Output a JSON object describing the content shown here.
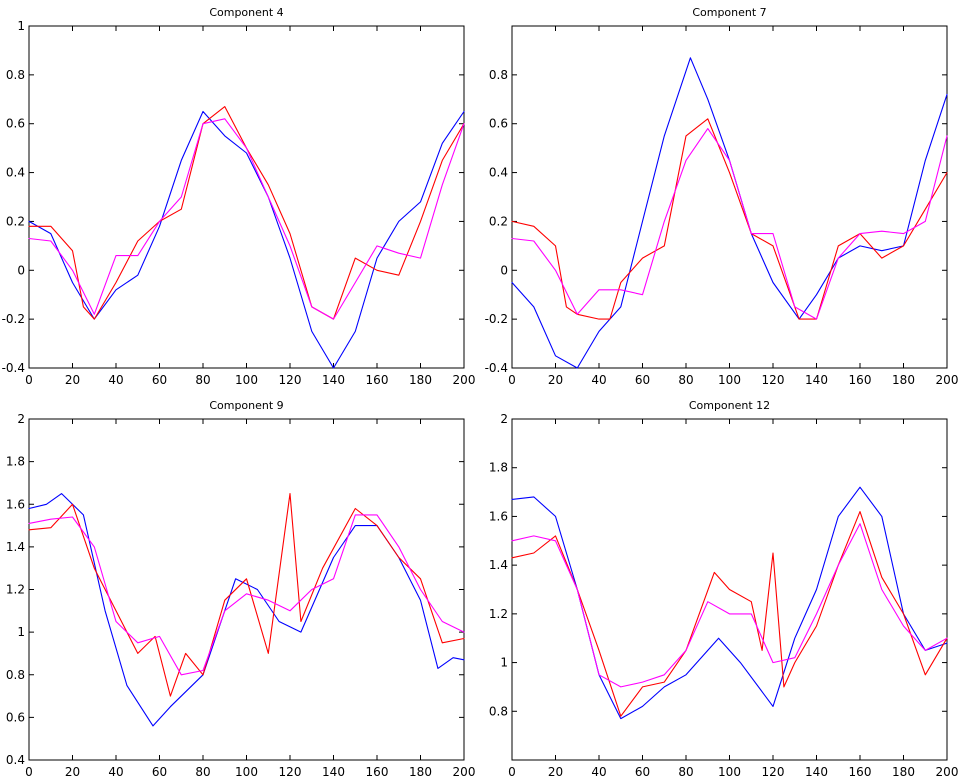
{
  "chart_data": [
    {
      "type": "line",
      "title": "Component 4",
      "xlabel": "",
      "ylabel": "",
      "xlim": [
        0,
        200
      ],
      "ylim": [
        -0.4,
        1
      ],
      "xticks": [
        "0",
        "20",
        "40",
        "60",
        "80",
        "100",
        "120",
        "140",
        "160",
        "180",
        "200"
      ],
      "yticks": [
        "-0.4",
        "-0.2",
        "0",
        "0.2",
        "0.4",
        "0.6",
        "0.8",
        "1"
      ],
      "grid": false,
      "series": [
        {
          "name": "blue",
          "color": "#0000ff",
          "x": [
            0,
            10,
            20,
            30,
            40,
            50,
            60,
            70,
            80,
            90,
            100,
            110,
            120,
            130,
            140,
            150,
            160,
            170,
            180,
            190,
            200
          ],
          "y": [
            0.2,
            0.15,
            -0.05,
            -0.2,
            -0.08,
            -0.02,
            0.18,
            0.45,
            0.65,
            0.55,
            0.48,
            0.3,
            0.05,
            -0.25,
            -0.4,
            -0.25,
            0.05,
            0.2,
            0.28,
            0.52,
            0.65
          ]
        },
        {
          "name": "red",
          "color": "#ff0000",
          "x": [
            0,
            10,
            20,
            25,
            30,
            40,
            50,
            60,
            70,
            80,
            90,
            100,
            110,
            120,
            130,
            140,
            150,
            160,
            170,
            180,
            190,
            200
          ],
          "y": [
            0.18,
            0.18,
            0.08,
            -0.15,
            -0.2,
            -0.05,
            0.12,
            0.2,
            0.25,
            0.6,
            0.67,
            0.5,
            0.35,
            0.15,
            -0.15,
            -0.2,
            0.05,
            0.0,
            -0.02,
            0.2,
            0.45,
            0.6
          ]
        },
        {
          "name": "magenta",
          "color": "#ff00ff",
          "x": [
            0,
            10,
            20,
            30,
            40,
            50,
            60,
            70,
            80,
            90,
            100,
            110,
            120,
            130,
            140,
            150,
            160,
            170,
            180,
            190,
            200
          ],
          "y": [
            0.13,
            0.12,
            0.0,
            -0.18,
            0.06,
            0.06,
            0.2,
            0.3,
            0.6,
            0.62,
            0.5,
            0.3,
            0.1,
            -0.15,
            -0.2,
            -0.05,
            0.1,
            0.07,
            0.05,
            0.35,
            0.6
          ]
        }
      ]
    },
    {
      "type": "line",
      "title": "Component 7",
      "xlabel": "",
      "ylabel": "",
      "xlim": [
        0,
        200
      ],
      "ylim": [
        -0.4,
        1
      ],
      "xticks": [
        "0",
        "20",
        "40",
        "60",
        "80",
        "100",
        "120",
        "140",
        "160",
        "180",
        "200"
      ],
      "yticks": [
        "-0.4",
        "-0.2",
        "0",
        "0.2",
        "0.4",
        "0.6",
        "0.8"
      ],
      "grid": false,
      "series": [
        {
          "name": "blue",
          "color": "#0000ff",
          "x": [
            0,
            10,
            20,
            30,
            40,
            50,
            60,
            70,
            82,
            90,
            100,
            110,
            120,
            132,
            140,
            150,
            160,
            170,
            180,
            190,
            200
          ],
          "y": [
            -0.05,
            -0.15,
            -0.35,
            -0.4,
            -0.25,
            -0.15,
            0.2,
            0.55,
            0.87,
            0.7,
            0.45,
            0.15,
            -0.05,
            -0.2,
            -0.1,
            0.05,
            0.1,
            0.08,
            0.1,
            0.45,
            0.72
          ]
        },
        {
          "name": "red",
          "color": "#ff0000",
          "x": [
            0,
            10,
            20,
            25,
            30,
            40,
            45,
            50,
            60,
            70,
            80,
            90,
            100,
            110,
            120,
            132,
            140,
            150,
            160,
            170,
            180,
            190,
            200
          ],
          "y": [
            0.2,
            0.18,
            0.1,
            -0.15,
            -0.18,
            -0.2,
            -0.2,
            -0.05,
            0.05,
            0.1,
            0.55,
            0.62,
            0.4,
            0.15,
            0.1,
            -0.2,
            -0.2,
            0.1,
            0.15,
            0.05,
            0.1,
            0.25,
            0.4
          ]
        },
        {
          "name": "magenta",
          "color": "#ff00ff",
          "x": [
            0,
            10,
            20,
            30,
            40,
            50,
            60,
            70,
            80,
            90,
            100,
            110,
            120,
            130,
            140,
            150,
            160,
            170,
            180,
            190,
            200
          ],
          "y": [
            0.13,
            0.12,
            0.0,
            -0.18,
            -0.08,
            -0.08,
            -0.1,
            0.2,
            0.45,
            0.58,
            0.45,
            0.15,
            0.15,
            -0.15,
            -0.2,
            0.05,
            0.15,
            0.16,
            0.15,
            0.2,
            0.55
          ]
        }
      ]
    },
    {
      "type": "line",
      "title": "Component 9",
      "xlabel": "",
      "ylabel": "",
      "xlim": [
        0,
        200
      ],
      "ylim": [
        0.4,
        2
      ],
      "xticks": [
        "0",
        "20",
        "40",
        "60",
        "80",
        "100",
        "120",
        "140",
        "160",
        "180",
        "200"
      ],
      "yticks": [
        "0.4",
        "0.6",
        "0.8",
        "1",
        "1.2",
        "1.4",
        "1.6",
        "1.8",
        "2"
      ],
      "grid": false,
      "series": [
        {
          "name": "blue",
          "color": "#0000ff",
          "x": [
            0,
            8,
            15,
            25,
            35,
            45,
            57,
            65,
            80,
            95,
            105,
            115,
            125,
            140,
            150,
            160,
            170,
            180,
            188,
            195,
            200
          ],
          "y": [
            1.58,
            1.6,
            1.65,
            1.55,
            1.1,
            0.75,
            0.56,
            0.65,
            0.8,
            1.25,
            1.2,
            1.05,
            1.0,
            1.35,
            1.5,
            1.5,
            1.35,
            1.15,
            0.83,
            0.88,
            0.87
          ]
        },
        {
          "name": "red",
          "color": "#ff0000",
          "x": [
            0,
            10,
            20,
            30,
            40,
            50,
            58,
            65,
            72,
            80,
            90,
            100,
            110,
            120,
            125,
            135,
            150,
            160,
            170,
            180,
            190,
            200
          ],
          "y": [
            1.48,
            1.49,
            1.6,
            1.3,
            1.1,
            0.9,
            0.98,
            0.7,
            0.9,
            0.8,
            1.15,
            1.25,
            0.9,
            1.65,
            1.05,
            1.3,
            1.58,
            1.5,
            1.35,
            1.25,
            0.95,
            0.97
          ]
        },
        {
          "name": "magenta",
          "color": "#ff00ff",
          "x": [
            0,
            10,
            20,
            30,
            40,
            50,
            60,
            70,
            80,
            90,
            100,
            110,
            120,
            130,
            140,
            150,
            160,
            170,
            180,
            190,
            200
          ],
          "y": [
            1.51,
            1.53,
            1.54,
            1.4,
            1.05,
            0.95,
            0.98,
            0.8,
            0.82,
            1.1,
            1.18,
            1.15,
            1.1,
            1.2,
            1.25,
            1.55,
            1.55,
            1.4,
            1.2,
            1.05,
            1.0
          ]
        }
      ]
    },
    {
      "type": "line",
      "title": "Component 12",
      "xlabel": "",
      "ylabel": "",
      "xlim": [
        0,
        200
      ],
      "ylim": [
        0.6,
        2
      ],
      "xticks": [
        "0",
        "20",
        "40",
        "60",
        "80",
        "100",
        "120",
        "140",
        "160",
        "180",
        "200"
      ],
      "yticks": [
        "0.8",
        "1",
        "1.2",
        "1.4",
        "1.6",
        "1.8",
        "2"
      ],
      "grid": false,
      "series": [
        {
          "name": "blue",
          "color": "#0000ff",
          "x": [
            0,
            10,
            20,
            30,
            40,
            50,
            60,
            70,
            80,
            95,
            105,
            120,
            130,
            140,
            150,
            160,
            170,
            180,
            190,
            200
          ],
          "y": [
            1.67,
            1.68,
            1.6,
            1.3,
            0.95,
            0.77,
            0.82,
            0.9,
            0.95,
            1.1,
            1.0,
            0.82,
            1.1,
            1.3,
            1.6,
            1.72,
            1.6,
            1.2,
            1.05,
            1.08
          ]
        },
        {
          "name": "red",
          "color": "#ff0000",
          "x": [
            0,
            10,
            20,
            30,
            40,
            50,
            60,
            70,
            80,
            93,
            100,
            110,
            115,
            120,
            125,
            130,
            140,
            150,
            160,
            170,
            180,
            190,
            200
          ],
          "y": [
            1.43,
            1.45,
            1.52,
            1.3,
            1.05,
            0.78,
            0.9,
            0.92,
            1.05,
            1.37,
            1.3,
            1.25,
            1.05,
            1.45,
            0.9,
            1.0,
            1.15,
            1.4,
            1.62,
            1.35,
            1.2,
            0.95,
            1.1
          ]
        },
        {
          "name": "magenta",
          "color": "#ff00ff",
          "x": [
            0,
            10,
            20,
            30,
            40,
            50,
            60,
            70,
            80,
            90,
            100,
            110,
            120,
            130,
            140,
            150,
            160,
            170,
            180,
            190,
            200
          ],
          "y": [
            1.5,
            1.52,
            1.5,
            1.3,
            0.95,
            0.9,
            0.92,
            0.95,
            1.05,
            1.25,
            1.2,
            1.2,
            1.0,
            1.02,
            1.2,
            1.4,
            1.57,
            1.3,
            1.15,
            1.05,
            1.1
          ]
        }
      ]
    }
  ]
}
